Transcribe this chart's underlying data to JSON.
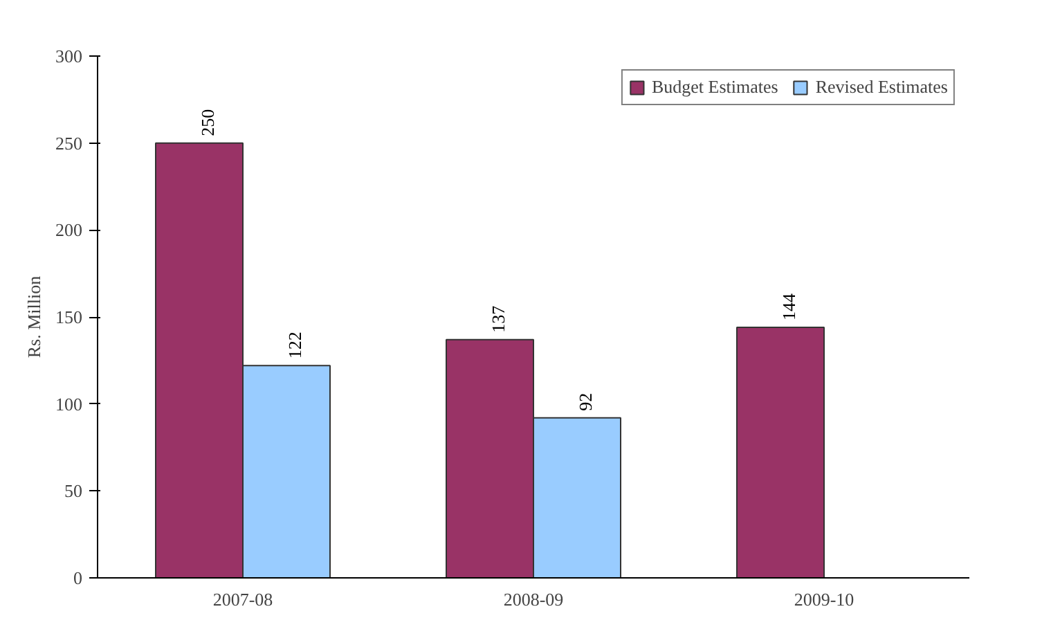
{
  "chart_data": {
    "type": "bar",
    "categories": [
      "2007-08",
      "2008-09",
      "2009-10"
    ],
    "ylabel": "Rs. Million",
    "ylim": [
      0,
      300
    ],
    "yticks": [
      0,
      50,
      100,
      150,
      200,
      250,
      300
    ],
    "grid": false,
    "legend": "top right",
    "data_labels": true,
    "series": [
      {
        "name": "Budget Estimates",
        "color": "#993366",
        "values": [
          250,
          137,
          144
        ]
      },
      {
        "name": "Revised Estimates",
        "color": "#99ccff",
        "values": [
          122,
          92,
          null
        ]
      }
    ]
  }
}
